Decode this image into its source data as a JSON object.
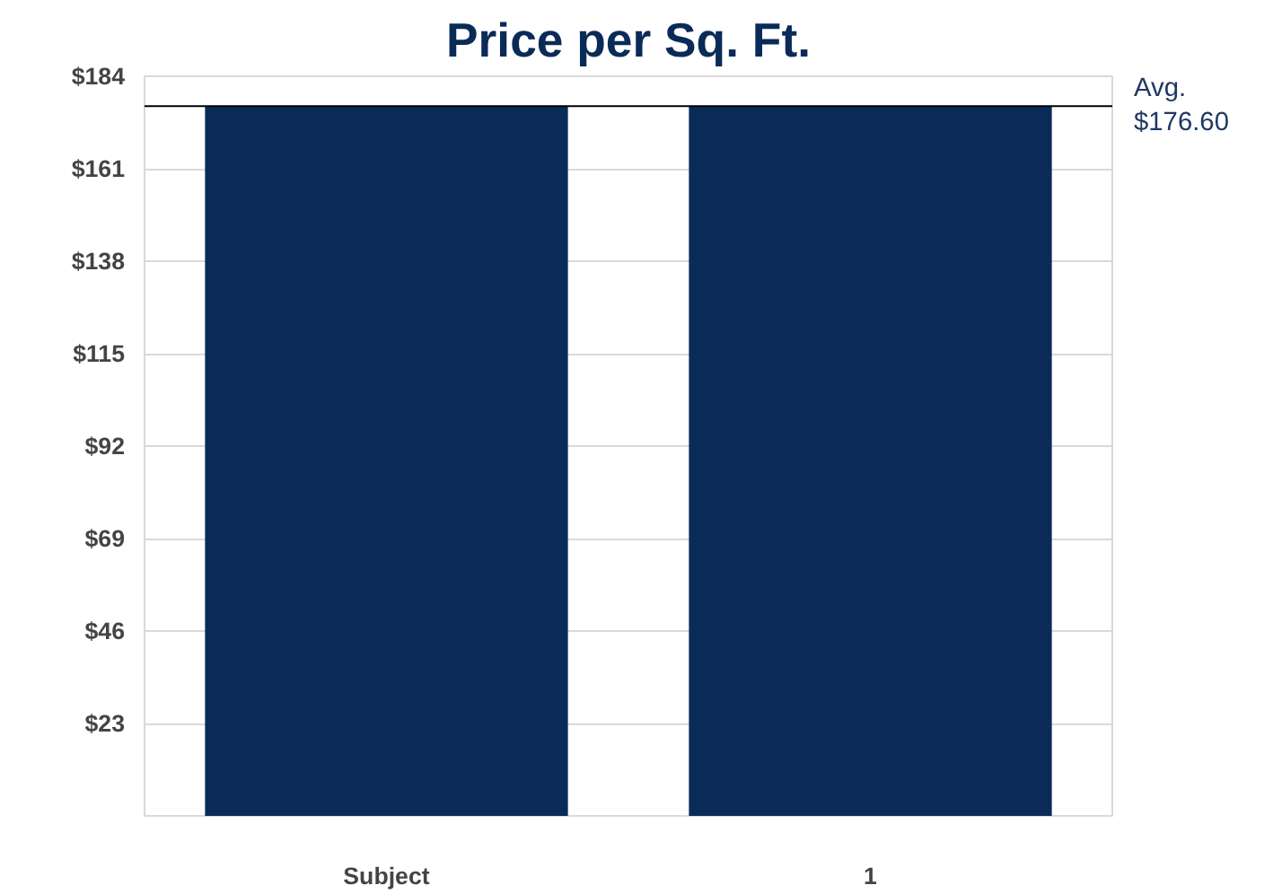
{
  "chart_data": {
    "type": "bar",
    "title": "Price per Sq. Ft.",
    "categories": [
      "Subject",
      "1"
    ],
    "values": [
      176.6,
      176.6
    ],
    "color": "#0a2b57",
    "ylim": [
      0,
      184
    ],
    "yticks": [
      {
        "value": 23,
        "label": "$23"
      },
      {
        "value": 46,
        "label": "$46"
      },
      {
        "value": 69,
        "label": "$69"
      },
      {
        "value": 92,
        "label": "$92"
      },
      {
        "value": 115,
        "label": "$115"
      },
      {
        "value": 138,
        "label": "$138"
      },
      {
        "value": 161,
        "label": "$161"
      },
      {
        "value": 184,
        "label": "$184"
      }
    ],
    "grid": "y",
    "ref_lines": [
      {
        "axis": "y",
        "value": 176.6,
        "label": "Avg.\n$176.60",
        "color": "#000000"
      }
    ]
  }
}
